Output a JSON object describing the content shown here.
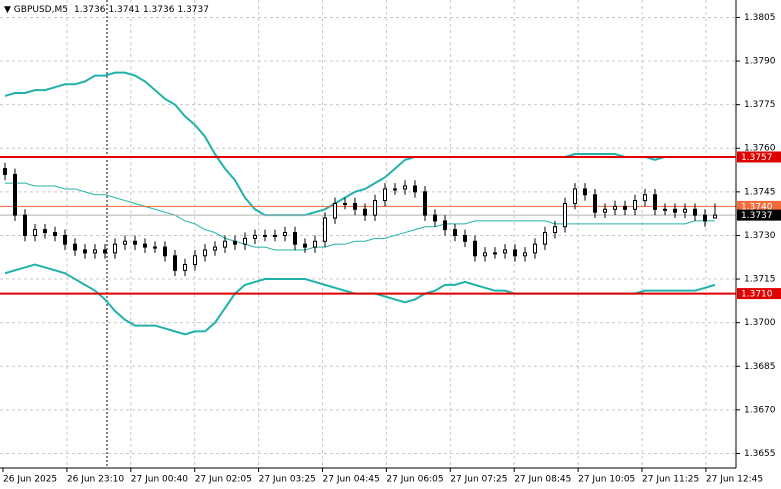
{
  "chart_data": {
    "type": "candlestick",
    "symbol": "GBPUSD,M5",
    "header_ohlc": [
      1.3736,
      1.3741,
      1.3736,
      1.3737
    ],
    "categories": [
      "26 Jun 2025",
      "26 Jun 23:10",
      "27 Jun 00:40",
      "27 Jun 02:05",
      "27 Jun 03:25",
      "27 Jun 04:45",
      "27 Jun 06:05",
      "27 Jun 07:25",
      "27 Jun 08:45",
      "27 Jun 10:05",
      "27 Jun 11:25",
      "27 Jun 12:45"
    ],
    "open": [
      1.3753,
      1.3751,
      1.3737,
      1.373,
      1.3732,
      1.3731,
      1.373,
      1.3727,
      1.3725,
      1.3724,
      1.3725,
      1.3724,
      1.3727,
      1.3728,
      1.3727,
      1.3726,
      1.3726,
      1.3723,
      1.3718,
      1.372,
      1.3723,
      1.3725,
      1.3726,
      1.3728,
      1.3727,
      1.3729,
      1.373,
      1.373,
      1.373,
      1.3731,
      1.3727,
      1.3726,
      1.3728,
      1.3736,
      1.3741,
      1.3741,
      1.3739,
      1.3737,
      1.3742,
      1.3746,
      1.3746,
      1.3747,
      1.3745,
      1.3737,
      1.3735,
      1.3732,
      1.373,
      1.3728,
      1.3723,
      1.3724,
      1.3724,
      1.3725,
      1.3723,
      1.3724,
      1.3727,
      1.3731,
      1.3733,
      1.3741,
      1.3746,
      1.3744,
      1.3738,
      1.3739,
      1.374,
      1.3739,
      1.3742,
      1.3744,
      1.3739,
      1.3739,
      1.3738,
      1.3739,
      1.3737,
      1.3736
    ],
    "high": [
      1.3755,
      1.3753,
      1.3739,
      1.3734,
      1.3734,
      1.3733,
      1.3732,
      1.3729,
      1.3727,
      1.3727,
      1.3727,
      1.3729,
      1.373,
      1.373,
      1.3729,
      1.3728,
      1.3728,
      1.3725,
      1.3722,
      1.3725,
      1.3727,
      1.3728,
      1.373,
      1.373,
      1.3731,
      1.3732,
      1.3732,
      1.3732,
      1.3733,
      1.3733,
      1.3729,
      1.373,
      1.3738,
      1.3743,
      1.3743,
      1.3743,
      1.3741,
      1.3744,
      1.3748,
      1.3748,
      1.3749,
      1.3749,
      1.3747,
      1.3739,
      1.3737,
      1.3734,
      1.3732,
      1.373,
      1.3726,
      1.3726,
      1.3727,
      1.3727,
      1.3726,
      1.3729,
      1.3733,
      1.3735,
      1.3743,
      1.3748,
      1.3748,
      1.3746,
      1.3741,
      1.3742,
      1.3742,
      1.3744,
      1.3746,
      1.3746,
      1.3741,
      1.3741,
      1.3741,
      1.3741,
      1.3739,
      1.3741
    ],
    "low": [
      1.3749,
      1.3735,
      1.3728,
      1.3728,
      1.3729,
      1.3728,
      1.3725,
      1.3723,
      1.3722,
      1.3722,
      1.3722,
      1.3722,
      1.3725,
      1.3725,
      1.3724,
      1.3724,
      1.3721,
      1.3716,
      1.3716,
      1.3718,
      1.3721,
      1.3723,
      1.3724,
      1.3725,
      1.3725,
      1.3727,
      1.3728,
      1.3728,
      1.3728,
      1.3725,
      1.3724,
      1.3724,
      1.3726,
      1.3734,
      1.3739,
      1.3737,
      1.3735,
      1.3735,
      1.374,
      1.3744,
      1.3744,
      1.3743,
      1.3735,
      1.3733,
      1.373,
      1.3728,
      1.3726,
      1.3721,
      1.3721,
      1.3722,
      1.3722,
      1.3721,
      1.3721,
      1.3722,
      1.3725,
      1.3729,
      1.3731,
      1.3739,
      1.3742,
      1.3736,
      1.3736,
      1.3737,
      1.3737,
      1.3737,
      1.374,
      1.3737,
      1.3737,
      1.3736,
      1.3736,
      1.3735,
      1.3733,
      1.3736
    ],
    "close": [
      1.3751,
      1.3737,
      1.373,
      1.3732,
      1.3731,
      1.373,
      1.3727,
      1.3725,
      1.3724,
      1.3725,
      1.3724,
      1.3727,
      1.3728,
      1.3727,
      1.3726,
      1.3726,
      1.3723,
      1.3718,
      1.372,
      1.3723,
      1.3725,
      1.3726,
      1.3728,
      1.3727,
      1.3729,
      1.373,
      1.373,
      1.373,
      1.3731,
      1.3727,
      1.3726,
      1.3728,
      1.3736,
      1.3741,
      1.3741,
      1.3739,
      1.3737,
      1.3742,
      1.3746,
      1.3746,
      1.3747,
      1.3745,
      1.3737,
      1.3735,
      1.3732,
      1.373,
      1.3728,
      1.3723,
      1.3724,
      1.3724,
      1.3725,
      1.3723,
      1.3724,
      1.3727,
      1.3731,
      1.3733,
      1.3741,
      1.3746,
      1.3744,
      1.3738,
      1.3739,
      1.374,
      1.3739,
      1.3742,
      1.3744,
      1.3739,
      1.3739,
      1.3738,
      1.3739,
      1.3737,
      1.3735,
      1.3737
    ],
    "bands": {
      "color": "#20b2aa",
      "upper": [
        1.3778,
        1.3779,
        1.3779,
        1.378,
        1.378,
        1.3781,
        1.3782,
        1.3782,
        1.3783,
        1.3785,
        1.3785,
        1.3786,
        1.3786,
        1.3785,
        1.3783,
        1.378,
        1.3777,
        1.3775,
        1.3771,
        1.3768,
        1.3764,
        1.3758,
        1.3753,
        1.3749,
        1.3743,
        1.3739,
        1.3737,
        1.3737,
        1.3737,
        1.3737,
        1.3737,
        1.3738,
        1.3739,
        1.3741,
        1.3743,
        1.3745,
        1.3746,
        1.3748,
        1.375,
        1.3753,
        1.3756,
        1.3757,
        1.3757,
        1.3757,
        1.3757,
        1.3757,
        1.3757,
        1.3757,
        1.3757,
        1.3757,
        1.3757,
        1.3757,
        1.3757,
        1.3757,
        1.3757,
        1.3757,
        1.3757,
        1.3758,
        1.3758,
        1.3758,
        1.3758,
        1.3758,
        1.3757,
        1.3757,
        1.3757,
        1.3756,
        1.3757,
        1.3757,
        1.3757,
        1.3757,
        1.3757,
        1.3757
      ],
      "middle": [
        1.3748,
        1.3748,
        1.3748,
        1.3747,
        1.3747,
        1.3747,
        1.3746,
        1.3746,
        1.3745,
        1.3744,
        1.3744,
        1.3743,
        1.3742,
        1.3741,
        1.374,
        1.3739,
        1.3738,
        1.3737,
        1.3735,
        1.3734,
        1.3732,
        1.3731,
        1.3729,
        1.3728,
        1.3727,
        1.3726,
        1.3726,
        1.3725,
        1.3725,
        1.3725,
        1.3725,
        1.3726,
        1.3726,
        1.3727,
        1.3727,
        1.3728,
        1.3728,
        1.3729,
        1.3729,
        1.373,
        1.3731,
        1.3732,
        1.3733,
        1.3733,
        1.3734,
        1.3734,
        1.3734,
        1.3735,
        1.3735,
        1.3735,
        1.3735,
        1.3735,
        1.3735,
        1.3735,
        1.3735,
        1.3734,
        1.3734,
        1.3734,
        1.3734,
        1.3734,
        1.3734,
        1.3734,
        1.3734,
        1.3734,
        1.3734,
        1.3734,
        1.3734,
        1.3734,
        1.3734,
        1.3735,
        1.3735,
        1.3735
      ],
      "lower": [
        1.3717,
        1.3718,
        1.3719,
        1.372,
        1.3719,
        1.3718,
        1.3717,
        1.3715,
        1.3713,
        1.3711,
        1.3708,
        1.3704,
        1.3701,
        1.3699,
        1.3699,
        1.3699,
        1.3698,
        1.3697,
        1.3696,
        1.3697,
        1.3697,
        1.37,
        1.3705,
        1.371,
        1.3713,
        1.3714,
        1.3715,
        1.3715,
        1.3715,
        1.3715,
        1.3715,
        1.3714,
        1.3713,
        1.3712,
        1.3711,
        1.371,
        1.371,
        1.371,
        1.3709,
        1.3708,
        1.3707,
        1.3708,
        1.371,
        1.3711,
        1.3713,
        1.3713,
        1.3714,
        1.3713,
        1.3712,
        1.3711,
        1.3711,
        1.371,
        1.371,
        1.371,
        1.371,
        1.371,
        1.371,
        1.371,
        1.371,
        1.371,
        1.371,
        1.371,
        1.371,
        1.371,
        1.3711,
        1.3711,
        1.3711,
        1.3711,
        1.3711,
        1.3711,
        1.3712,
        1.3713
      ]
    },
    "ylim": [
      1.365,
      1.3811
    ],
    "yticks": [
      1.3805,
      {
        "value": 1.379,
        "label": "1.3790"
      },
      1.3775,
      {
        "value": 1.376,
        "label": "1.3760"
      },
      1.3745,
      {
        "value": 1.373,
        "label": "1.3730"
      },
      1.3715,
      {
        "value": 1.37,
        "label": "1.3700"
      },
      1.3685,
      {
        "value": 1.367,
        "label": "1.3670"
      },
      1.3655
    ],
    "grid": true,
    "levels": [
      {
        "value": 1.3757,
        "color": "#e00000"
      },
      {
        "value": 1.371,
        "label": "1.3710",
        "color": "#e00000"
      },
      {
        "value": 1.374,
        "label": "1.3740",
        "color": "#f26b3a"
      }
    ],
    "price": 1.3737
  }
}
